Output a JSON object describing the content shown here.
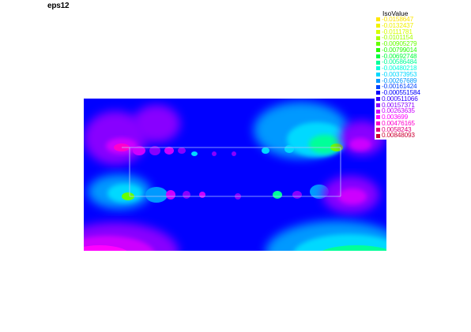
{
  "title": "eps12",
  "legend": {
    "title": "IsoValue",
    "entries": [
      {
        "label": "-0.0158647",
        "color": "#ffe600"
      },
      {
        "label": "-0.0132437",
        "color": "#f2f200"
      },
      {
        "label": "-0.0111781",
        "color": "#d6ff00"
      },
      {
        "label": "-0.0101154",
        "color": "#a6ff00"
      },
      {
        "label": "-0.00905279",
        "color": "#66ff00"
      },
      {
        "label": "-0.00799014",
        "color": "#22ff00"
      },
      {
        "label": "-0.00692748",
        "color": "#00ff3c"
      },
      {
        "label": "-0.00586484",
        "color": "#00ff99"
      },
      {
        "label": "-0.00480218",
        "color": "#00ffdd"
      },
      {
        "label": "-0.00373953",
        "color": "#00d9ff"
      },
      {
        "label": "-0.00267689",
        "color": "#0099ff"
      },
      {
        "label": "-0.00161424",
        "color": "#0044ff"
      },
      {
        "label": "-0.000551584",
        "color": "#0000ff"
      },
      {
        "label": "0.000511066",
        "color": "#3300ff"
      },
      {
        "label": "0.00157371",
        "color": "#8800ff"
      },
      {
        "label": "0.00263635",
        "color": "#cc00ff"
      },
      {
        "label": "0.003699",
        "color": "#ff00ff"
      },
      {
        "label": "0.00476165",
        "color": "#ff00cc"
      },
      {
        "label": "0.0058243",
        "color": "#e6007a"
      },
      {
        "label": "0.00848093",
        "color": "#cc0033"
      }
    ]
  }
}
